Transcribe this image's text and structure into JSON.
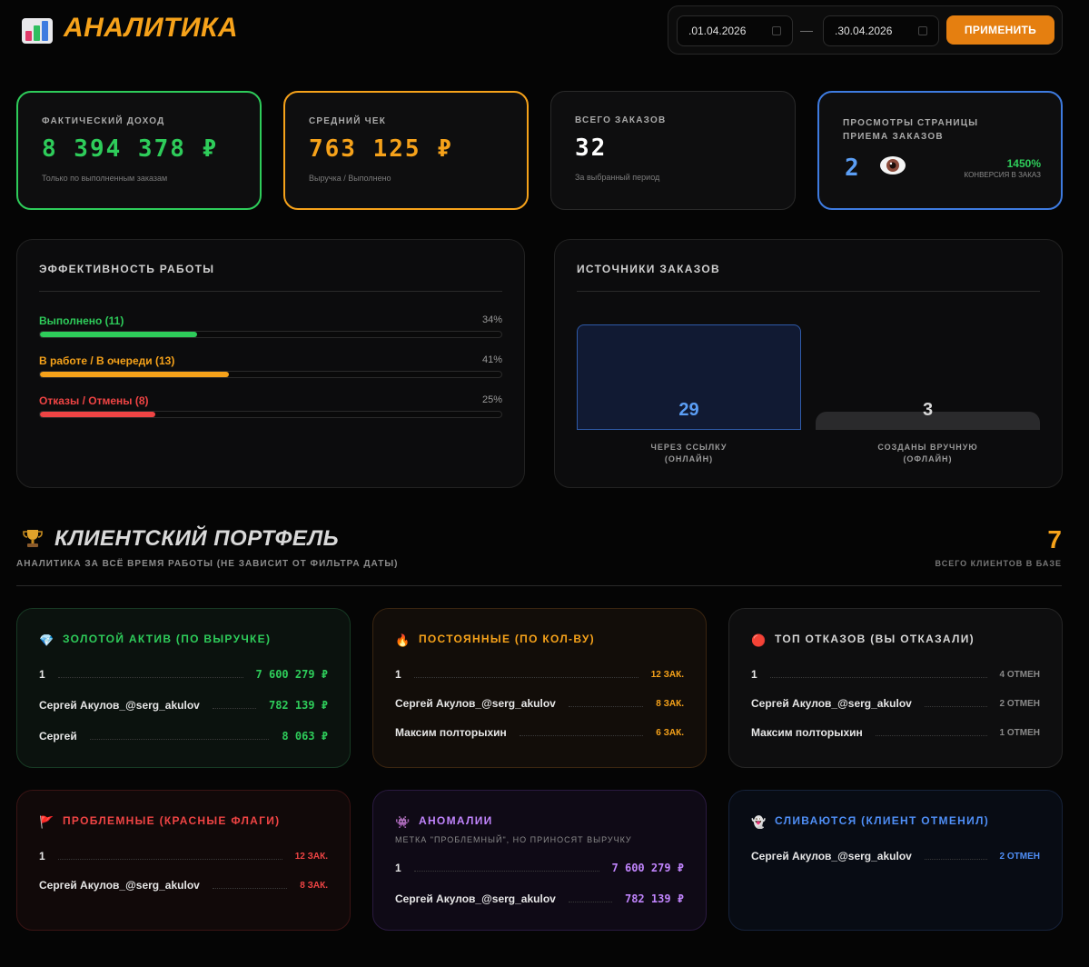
{
  "header": {
    "title": "АНАЛИТИКА",
    "date_from": ".01.04.2026",
    "date_to": ".30.04.2026",
    "apply_label": "ПРИМЕНИТЬ",
    "separator": "—"
  },
  "kpis": {
    "income": {
      "label": "ФАКТИЧЕСКИЙ ДОХОД",
      "value": "8 394 378 ₽",
      "sub": "Только по выполненным заказам",
      "color": "#2ecc5a"
    },
    "avg_check": {
      "label": "СРЕДНИЙ ЧЕК",
      "value": "763 125 ₽",
      "sub": "Выручка / Выполнено",
      "color": "#f6a21a"
    },
    "total_orders": {
      "label": "ВСЕГО ЗАКАЗОВ",
      "value": "32",
      "sub": "За выбранный период"
    },
    "views": {
      "label_line1": "ПРОСМОТРЫ СТРАНИЦЫ",
      "label_line2": "ПРИЕМА ЗАКАЗОВ",
      "value": "2",
      "conversion": "1450%",
      "conversion_label": "КОНВЕРСИЯ В ЗАКАЗ",
      "icon": "eye-icon"
    }
  },
  "efficiency": {
    "title": "ЭФФЕКТИВНОСТЬ РАБОТЫ",
    "rows": [
      {
        "label": "Выполнено (11)",
        "pct": "34%",
        "fraction": 0.34,
        "color": "#2ecc5a"
      },
      {
        "label": "В работе / В очереди (13)",
        "pct": "41%",
        "fraction": 0.41,
        "color": "#f6a21a"
      },
      {
        "label": "Отказы / Отмены (8)",
        "pct": "25%",
        "fraction": 0.25,
        "color": "#ef4444"
      }
    ]
  },
  "sources": {
    "title": "ИСТОЧНИКИ ЗАКАЗОВ",
    "online": {
      "value": "29",
      "cap1": "ЧЕРЕЗ ССЫЛКУ",
      "cap2": "(ОНЛАЙН)"
    },
    "offline": {
      "value": "3",
      "cap1": "СОЗДАНЫ ВРУЧНУЮ",
      "cap2": "(ОФЛАЙН)"
    }
  },
  "portfolio": {
    "title": "КЛИЕНТСКИЙ ПОРТФЕЛЬ",
    "subtitle": "АНАЛИТИКА ЗА ВСЁ ВРЕМЯ РАБОТЫ (НЕ ЗАВИСИТ ОТ ФИЛЬТРА ДАТЫ)",
    "total_clients": "7",
    "total_clients_label": "ВСЕГО КЛИЕНТОВ В БАЗЕ",
    "cards": {
      "gold": {
        "icon": "💎",
        "title": "ЗОЛОТОЙ АКТИВ (ПО ВЫРУЧКЕ)",
        "rows": [
          {
            "name": "1",
            "value": "7 600 279 ₽"
          },
          {
            "name": "Сергей Акулов_@serg_akulov",
            "value": "782 139 ₽"
          },
          {
            "name": "Сергей",
            "value": "8 063 ₽"
          }
        ]
      },
      "regular": {
        "icon": "🔥",
        "title": "ПОСТОЯННЫЕ (ПО КОЛ-ВУ)",
        "rows": [
          {
            "name": "1",
            "value": "12 ЗАК."
          },
          {
            "name": "Сергей Акулов_@serg_akulov",
            "value": "8 ЗАК."
          },
          {
            "name": "Максим полторыхин",
            "value": "6 ЗАК."
          }
        ]
      },
      "refusals": {
        "icon": "🔴",
        "title": "ТОП ОТКАЗОВ (ВЫ ОТКАЗАЛИ)",
        "rows": [
          {
            "name": "1",
            "value": "4 ОТМЕН"
          },
          {
            "name": "Сергей Акулов_@serg_akulov",
            "value": "2 ОТМЕН"
          },
          {
            "name": "Максим полторыхин",
            "value": "1 ОТМЕН"
          }
        ]
      },
      "problem": {
        "icon": "🚩",
        "title": "ПРОБЛЕМНЫЕ (КРАСНЫЕ ФЛАГИ)",
        "rows": [
          {
            "name": "1",
            "value": "12 ЗАК."
          },
          {
            "name": "Сергей Акулов_@serg_akulov",
            "value": "8 ЗАК."
          }
        ]
      },
      "anomalies": {
        "icon": "👾",
        "title": "АНОМАЛИИ",
        "subtitle": "МЕТКА \"ПРОБЛЕМНЫЙ\", НО ПРИНОСЯТ ВЫРУЧКУ",
        "rows": [
          {
            "name": "1",
            "value": "7 600 279 ₽"
          },
          {
            "name": "Сергей Акулов_@serg_akulov",
            "value": "782 139 ₽"
          }
        ]
      },
      "churn": {
        "icon": "👻",
        "title": "СЛИВАЮТСЯ (КЛИЕНТ ОТМЕНИЛ)",
        "rows": [
          {
            "name": "Сергей Акулов_@serg_akulov",
            "value": "2 ОТМЕН"
          }
        ]
      }
    }
  }
}
